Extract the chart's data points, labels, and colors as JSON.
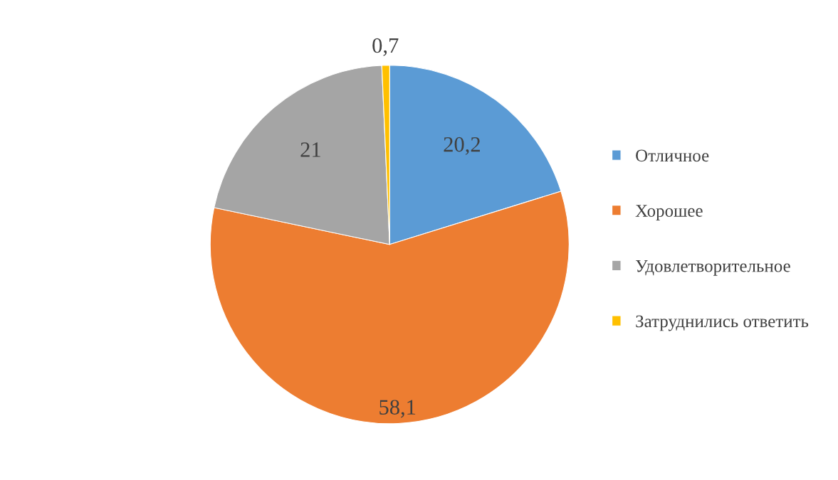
{
  "chart_data": {
    "type": "pie",
    "categories": [
      "Отличное",
      "Хорошее",
      "Удовлетворительное",
      "Затруднились ответить"
    ],
    "values": [
      20.2,
      58.1,
      21,
      0.7
    ],
    "colors": [
      "#5b9bd5",
      "#ed7d31",
      "#a5a5a5",
      "#ffc000"
    ],
    "value_labels": [
      "20,2",
      "58,1",
      "21",
      "0,7"
    ],
    "legend": "right"
  }
}
